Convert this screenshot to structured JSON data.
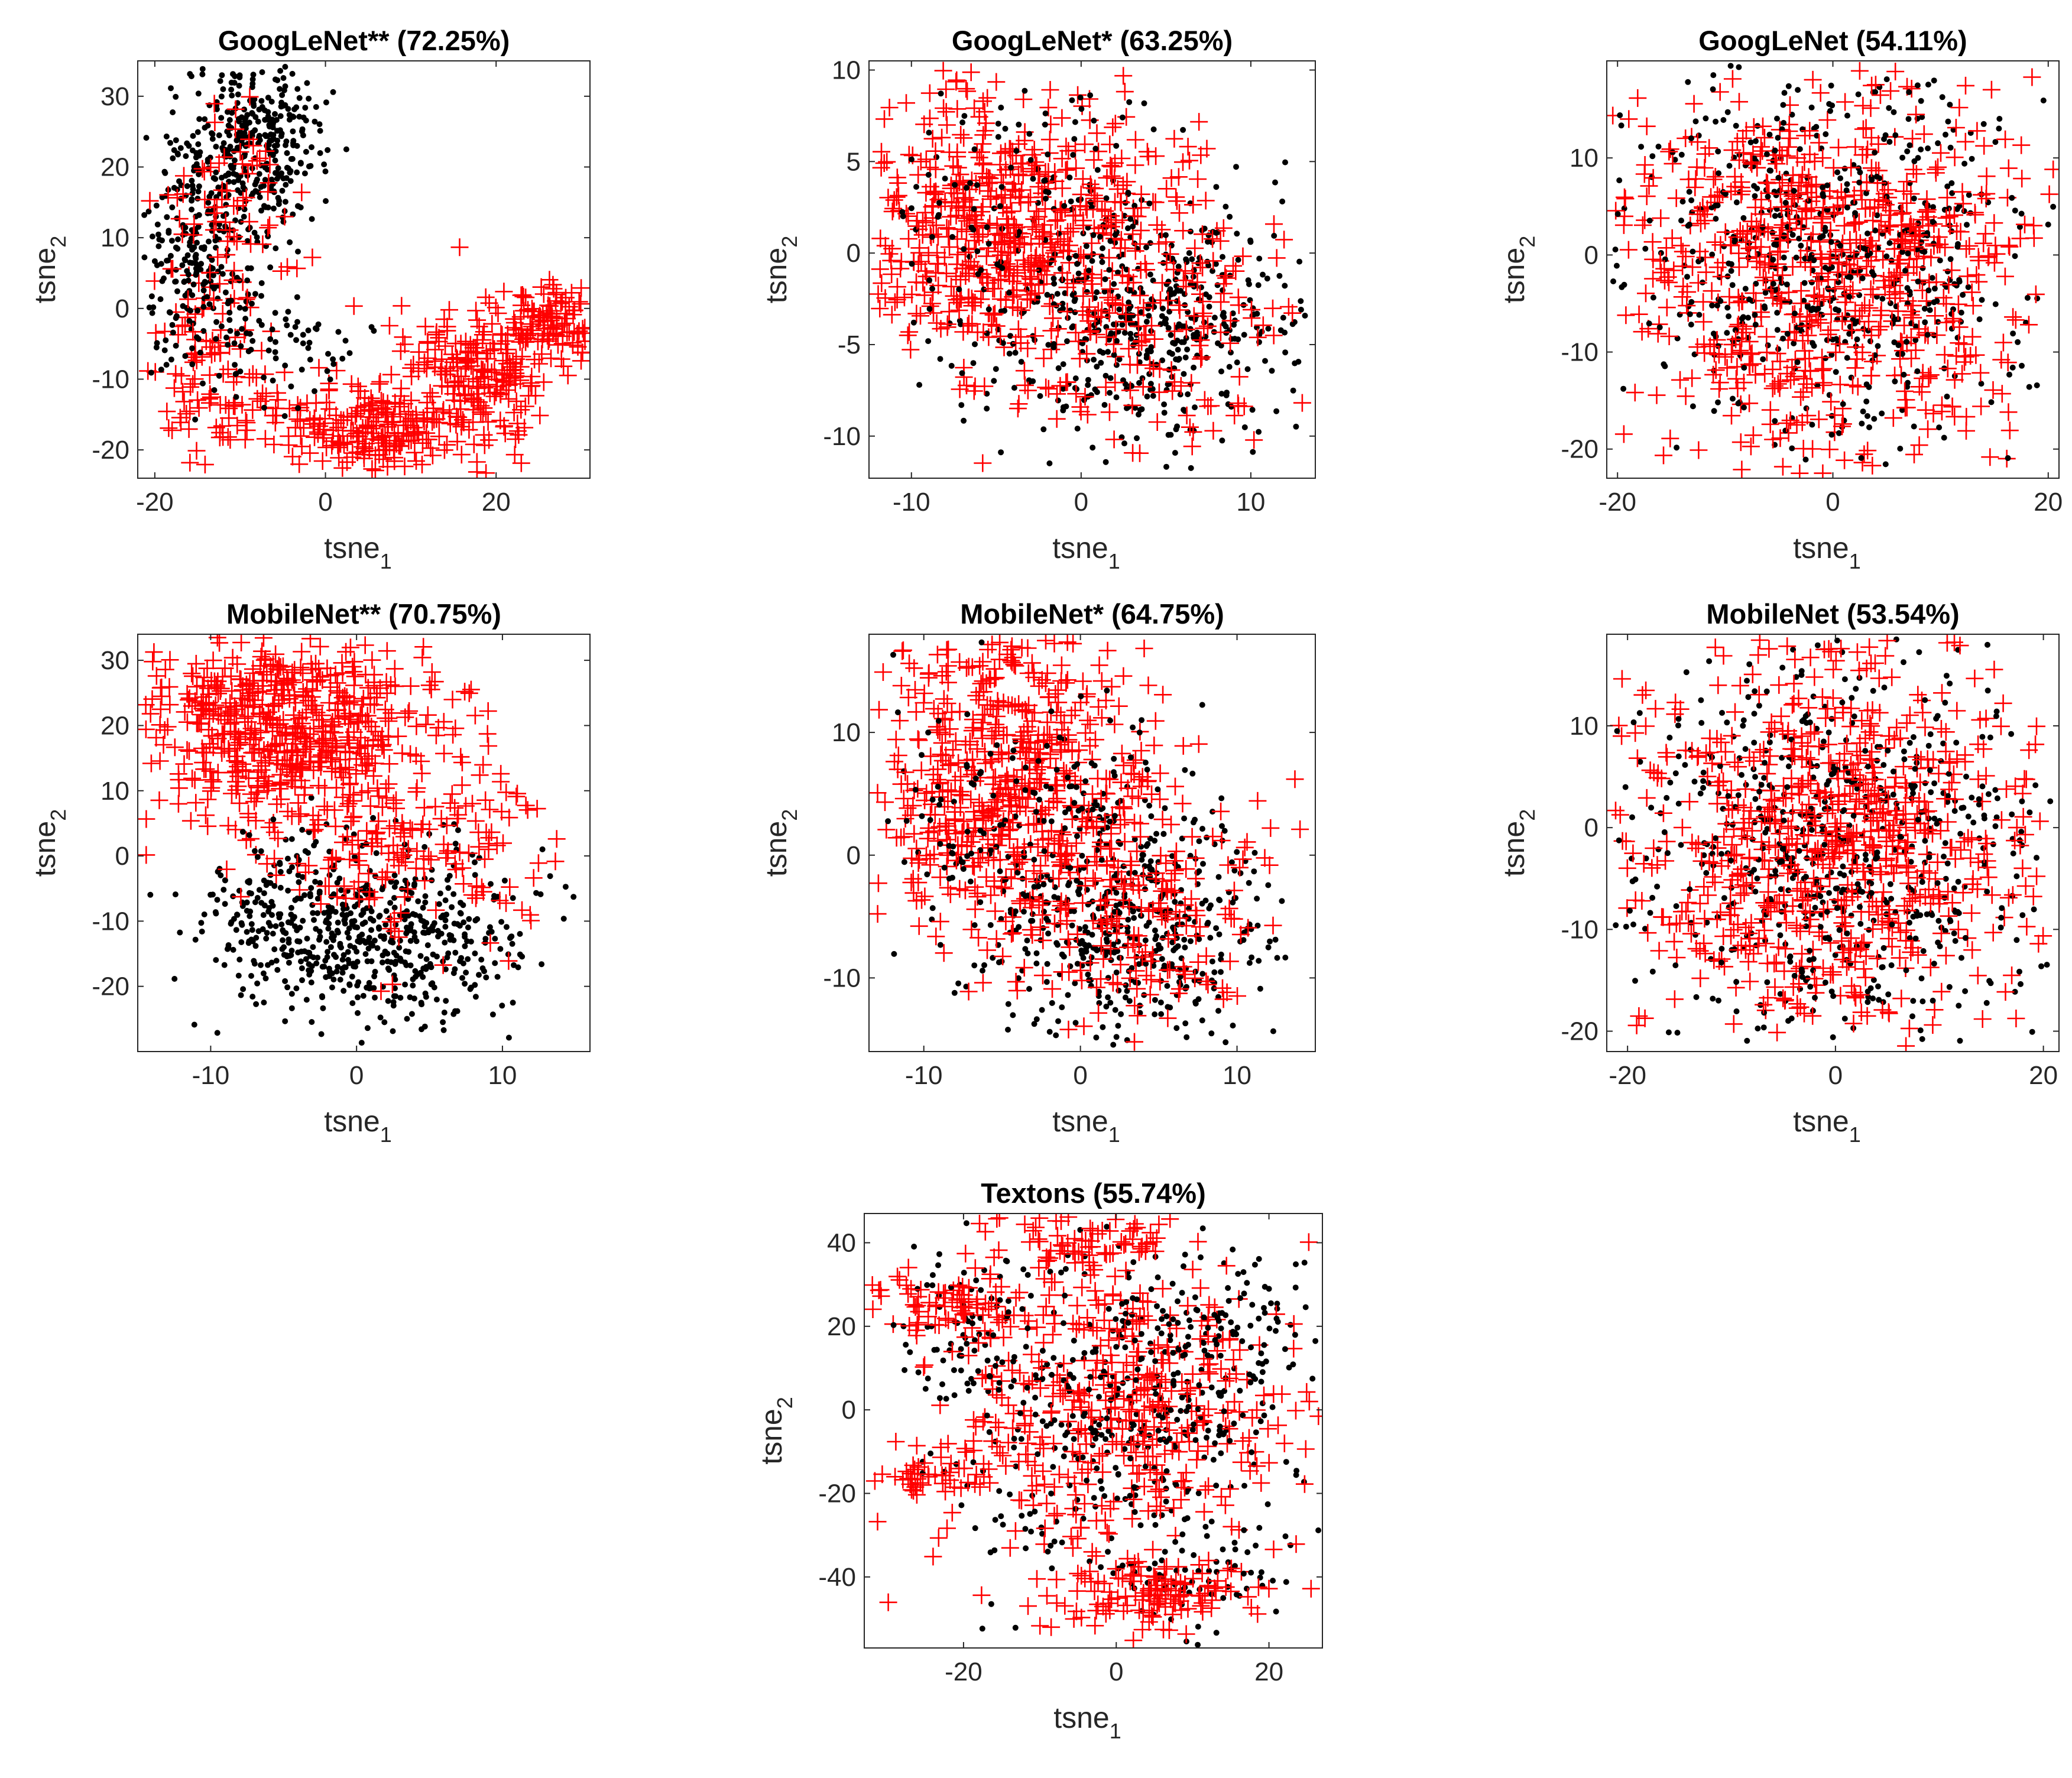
{
  "figure": {
    "marker_legend": {
      "dot": "black dot",
      "cross": "red plus"
    }
  },
  "colors": {
    "dot": "#000000",
    "cross": "#ff0000",
    "axes": "#262626",
    "background": "#ffffff"
  },
  "chart_data": [
    {
      "type": "scatter",
      "title": "GoogLeNet** (72.25%)",
      "xlabel": "tsne",
      "xlabel_sub": "1",
      "ylabel": "tsne",
      "ylabel_sub": "2",
      "xlim": [
        -22,
        31
      ],
      "ylim": [
        -24,
        35
      ],
      "xticks": [
        -20,
        0,
        20
      ],
      "yticks": [
        -20,
        -10,
        0,
        10,
        20,
        30
      ],
      "series": [
        {
          "name": "dots",
          "marker": "dot",
          "color": "#000000",
          "count": 650,
          "clusters": [
            {
              "center": [
                -8,
                24
              ],
              "spread": [
                4,
                6
              ],
              "weight": 0.5
            },
            {
              "center": [
                -15,
                8
              ],
              "spread": [
                3.5,
                8
              ],
              "weight": 0.4
            },
            {
              "center": [
                -5,
                -5
              ],
              "spread": [
                5,
                4
              ],
              "weight": 0.1
            }
          ]
        },
        {
          "name": "crosses",
          "marker": "cross",
          "color": "#ff0000",
          "count": 700,
          "clusters": [
            {
              "center": [
                -14,
                -8
              ],
              "spread": [
                4,
                6
              ],
              "weight": 0.15
            },
            {
              "center": [
                5,
                -17
              ],
              "spread": [
                6,
                3
              ],
              "weight": 0.3
            },
            {
              "center": [
                18,
                -10
              ],
              "spread": [
                5,
                5
              ],
              "weight": 0.3
            },
            {
              "center": [
                26,
                -2
              ],
              "spread": [
                3,
                3
              ],
              "weight": 0.15
            },
            {
              "center": [
                -12,
                15
              ],
              "spread": [
                4,
                6
              ],
              "weight": 0.1
            }
          ]
        }
      ]
    },
    {
      "type": "scatter",
      "title": "GoogLeNet* (63.25%)",
      "xlabel": "tsne",
      "xlabel_sub": "1",
      "ylabel": "tsne",
      "ylabel_sub": "2",
      "xlim": [
        -12.5,
        13.8
      ],
      "ylim": [
        -12.3,
        10.5
      ],
      "xticks": [
        -10,
        0,
        10
      ],
      "yticks": [
        -10,
        -5,
        0,
        5,
        10
      ],
      "series": [
        {
          "name": "dots",
          "marker": "dot",
          "color": "#000000",
          "count": 600,
          "clusters": [
            {
              "center": [
                4,
                -4
              ],
              "spread": [
                4.5,
                3.5
              ],
              "weight": 0.75
            },
            {
              "center": [
                -3,
                2
              ],
              "spread": [
                5,
                4
              ],
              "weight": 0.25
            }
          ]
        },
        {
          "name": "crosses",
          "marker": "cross",
          "color": "#ff0000",
          "count": 750,
          "clusters": [
            {
              "center": [
                -5,
                2
              ],
              "spread": [
                4.5,
                3.5
              ],
              "weight": 0.7
            },
            {
              "center": [
                3,
                -3
              ],
              "spread": [
                5,
                4
              ],
              "weight": 0.3
            }
          ]
        }
      ]
    },
    {
      "type": "scatter",
      "title": "GoogLeNet (54.11%)",
      "xlabel": "tsne",
      "xlabel_sub": "1",
      "ylabel": "tsne",
      "ylabel_sub": "2",
      "xlim": [
        -21,
        21
      ],
      "ylim": [
        -23,
        20
      ],
      "xticks": [
        -20,
        0,
        20
      ],
      "yticks": [
        -20,
        -10,
        0,
        10
      ],
      "series": [
        {
          "name": "dots",
          "marker": "dot",
          "color": "#000000",
          "count": 600,
          "clusters": [
            {
              "center": [
                0,
                -1
              ],
              "spread": [
                10,
                10
              ],
              "weight": 1
            }
          ]
        },
        {
          "name": "crosses",
          "marker": "cross",
          "color": "#ff0000",
          "count": 750,
          "clusters": [
            {
              "center": [
                0,
                -1
              ],
              "spread": [
                10,
                10
              ],
              "weight": 1
            }
          ]
        }
      ]
    },
    {
      "type": "scatter",
      "title": "MobileNet** (70.75%)",
      "xlabel": "tsne",
      "xlabel_sub": "1",
      "ylabel": "tsne",
      "ylabel_sub": "2",
      "xlim": [
        -15,
        16
      ],
      "ylim": [
        -30,
        34
      ],
      "xticks": [
        -10,
        0,
        10
      ],
      "yticks": [
        -20,
        -10,
        0,
        10,
        20,
        30
      ],
      "series": [
        {
          "name": "dots",
          "marker": "dot",
          "color": "#000000",
          "count": 650,
          "clusters": [
            {
              "center": [
                2,
                -12
              ],
              "spread": [
                5,
                7
              ],
              "weight": 0.8
            },
            {
              "center": [
                -6,
                -8
              ],
              "spread": [
                3,
                6
              ],
              "weight": 0.2
            }
          ]
        },
        {
          "name": "crosses",
          "marker": "cross",
          "color": "#ff0000",
          "count": 750,
          "clusters": [
            {
              "center": [
                -5,
                20
              ],
              "spread": [
                5,
                7
              ],
              "weight": 0.75
            },
            {
              "center": [
                4,
                2
              ],
              "spread": [
                5,
                8
              ],
              "weight": 0.25
            }
          ]
        }
      ]
    },
    {
      "type": "scatter",
      "title": "MobileNet* (64.75%)",
      "xlabel": "tsne",
      "xlabel_sub": "1",
      "ylabel": "tsne",
      "ylabel_sub": "2",
      "xlim": [
        -13.5,
        15
      ],
      "ylim": [
        -16,
        18
      ],
      "xticks": [
        -10,
        0,
        10
      ],
      "yticks": [
        -10,
        0,
        10
      ],
      "series": [
        {
          "name": "dots",
          "marker": "dot",
          "color": "#000000",
          "count": 600,
          "clusters": [
            {
              "center": [
                3,
                -6
              ],
              "spread": [
                5,
                5
              ],
              "weight": 0.75
            },
            {
              "center": [
                -3,
                3
              ],
              "spread": [
                5,
                5
              ],
              "weight": 0.25
            }
          ]
        },
        {
          "name": "crosses",
          "marker": "cross",
          "color": "#ff0000",
          "count": 750,
          "clusters": [
            {
              "center": [
                -5,
                7
              ],
              "spread": [
                4.5,
                6
              ],
              "weight": 0.7
            },
            {
              "center": [
                3,
                -4
              ],
              "spread": [
                5,
                5
              ],
              "weight": 0.3
            }
          ]
        }
      ]
    },
    {
      "type": "scatter",
      "title": "MobileNet (53.54%)",
      "xlabel": "tsne",
      "xlabel_sub": "1",
      "ylabel": "tsne",
      "ylabel_sub": "2",
      "xlim": [
        -22,
        21.5
      ],
      "ylim": [
        -22,
        19
      ],
      "xticks": [
        -20,
        0,
        20
      ],
      "yticks": [
        -20,
        -10,
        0,
        10
      ],
      "series": [
        {
          "name": "dots",
          "marker": "dot",
          "color": "#000000",
          "count": 600,
          "clusters": [
            {
              "center": [
                0,
                -2
              ],
              "spread": [
                10,
                9.5
              ],
              "weight": 1
            }
          ]
        },
        {
          "name": "crosses",
          "marker": "cross",
          "color": "#ff0000",
          "count": 750,
          "clusters": [
            {
              "center": [
                0,
                -2
              ],
              "spread": [
                10,
                9.5
              ],
              "weight": 1
            }
          ]
        }
      ]
    },
    {
      "type": "scatter",
      "title": "Textons (55.74%)",
      "xlabel": "tsne",
      "xlabel_sub": "1",
      "ylabel": "tsne",
      "ylabel_sub": "2",
      "xlim": [
        -33,
        27
      ],
      "ylim": [
        -57,
        47
      ],
      "xticks": [
        -20,
        0,
        20
      ],
      "yticks": [
        -40,
        -20,
        0,
        20,
        40
      ],
      "series": [
        {
          "name": "dots",
          "marker": "dot",
          "color": "#000000",
          "count": 600,
          "clusters": [
            {
              "center": [
                0,
                0
              ],
              "spread": [
                13,
                20
              ],
              "weight": 0.7
            },
            {
              "center": [
                -20,
                20
              ],
              "spread": [
                5,
                8
              ],
              "weight": 0.1
            },
            {
              "center": [
                10,
                -40
              ],
              "spread": [
                6,
                6
              ],
              "weight": 0.1
            },
            {
              "center": [
                15,
                20
              ],
              "spread": [
                6,
                8
              ],
              "weight": 0.1
            }
          ]
        },
        {
          "name": "crosses",
          "marker": "cross",
          "color": "#ff0000",
          "count": 750,
          "clusters": [
            {
              "center": [
                0,
                0
              ],
              "spread": [
                13,
                20
              ],
              "weight": 0.6
            },
            {
              "center": [
                -22,
                25
              ],
              "spread": [
                5,
                6
              ],
              "weight": 0.1
            },
            {
              "center": [
                -25,
                -16
              ],
              "spread": [
                3,
                2
              ],
              "weight": 0.05
            },
            {
              "center": [
                5,
                -45
              ],
              "spread": [
                6,
                4
              ],
              "weight": 0.15
            },
            {
              "center": [
                -5,
                40
              ],
              "spread": [
                6,
                4
              ],
              "weight": 0.1
            }
          ]
        }
      ]
    }
  ]
}
